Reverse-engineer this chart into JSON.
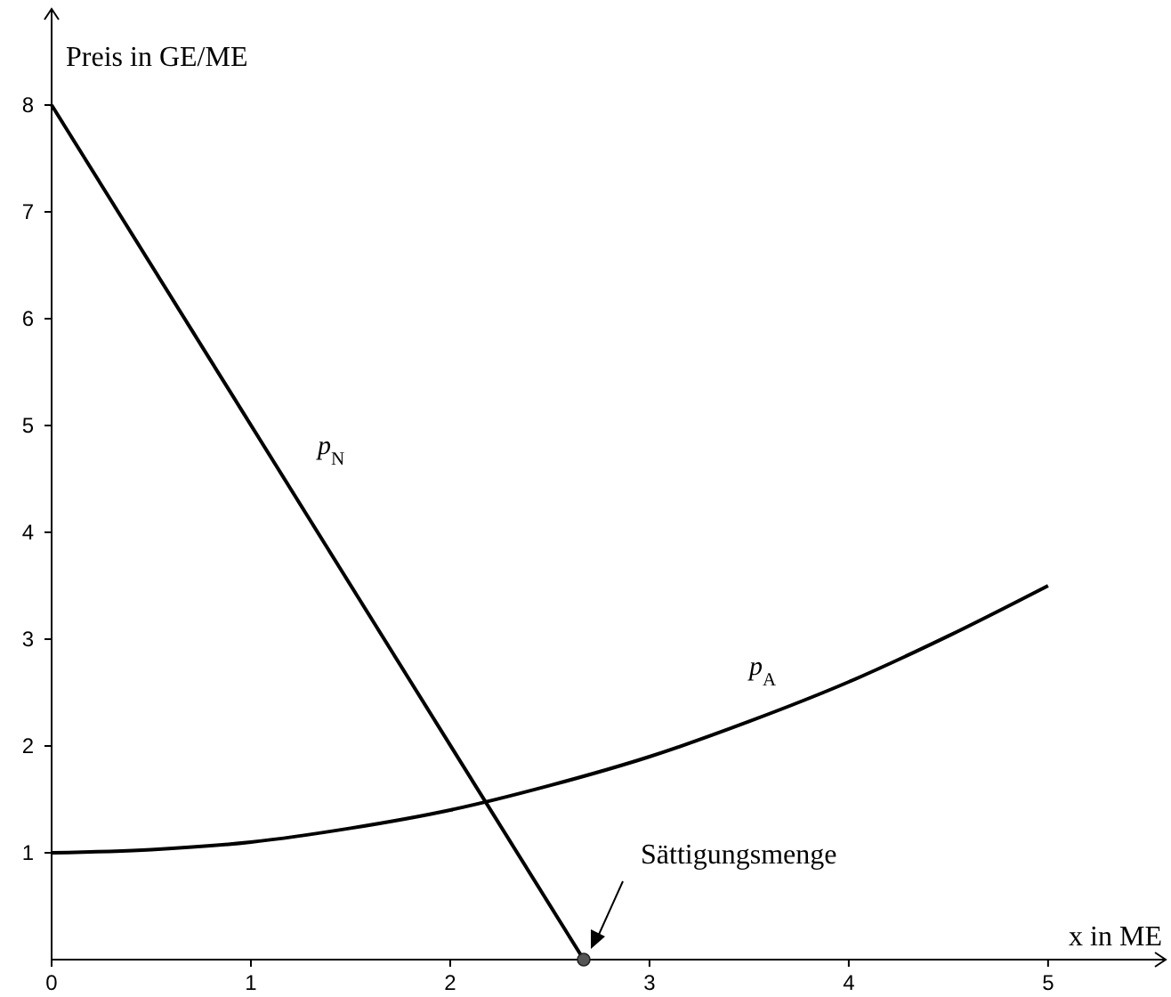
{
  "chart_data": {
    "type": "line",
    "xlabel": "x in ME",
    "ylabel": "Preis in GE/ME",
    "xlim": [
      0,
      5.59
    ],
    "ylim": [
      0,
      8.9
    ],
    "xticks": [
      0,
      1,
      2,
      3,
      4,
      5
    ],
    "yticks": [
      1,
      2,
      3,
      4,
      5,
      6,
      7,
      8
    ],
    "grid": false,
    "line_style": "solid",
    "marker": "none",
    "series": [
      {
        "name": "p$_{N}$",
        "color": "#000000",
        "x": [
          0,
          2.67
        ],
        "values": [
          8,
          0
        ]
      },
      {
        "name": "p$_{A}$",
        "color": "#000000",
        "x": [
          0,
          0.5,
          1,
          1.5,
          2,
          2.5,
          3,
          3.5,
          4,
          4.5,
          5
        ],
        "values": [
          1,
          1.03,
          1.1,
          1.23,
          1.4,
          1.63,
          1.9,
          2.23,
          2.6,
          3.03,
          3.5
        ]
      },
      {
        "type": "scatter",
        "marker": "circle",
        "color": "#555555",
        "x": [
          2.67
        ],
        "values": [
          0
        ]
      }
    ],
    "annotations": [
      "Sättigungsmenge"
    ]
  }
}
